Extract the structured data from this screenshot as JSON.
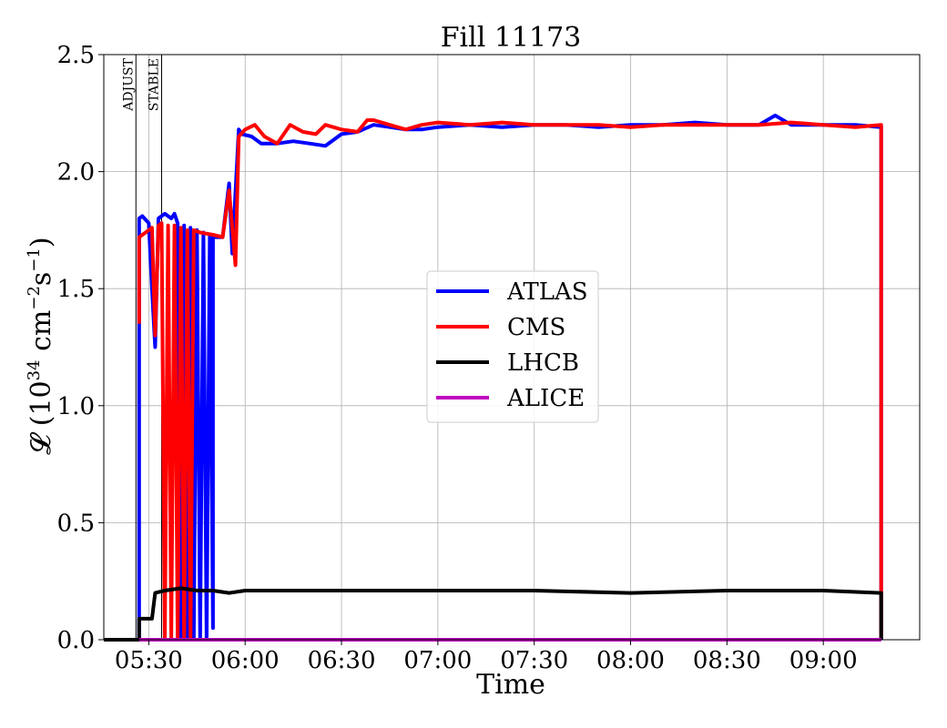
{
  "chart_data": {
    "type": "line",
    "title": "Fill 11173",
    "xlabel": "Time",
    "ylabel": "𝓛 (10³⁴ cm⁻²s⁻¹)",
    "ylabel_parts": {
      "prefix": "𝓛 (10",
      "sup1": "34",
      "mid": " cm",
      "sup2": "−2",
      "mid2": "s",
      "sup3": "−1",
      "suffix": ")"
    },
    "xlim": [
      "05:16",
      "09:30"
    ],
    "ylim": [
      0,
      2.5
    ],
    "xticks": [
      "05:30",
      "06:00",
      "06:30",
      "07:00",
      "07:30",
      "08:00",
      "08:30",
      "09:00"
    ],
    "yticks": [
      "0.0",
      "0.5",
      "1.0",
      "1.5",
      "2.0",
      "2.5"
    ],
    "grid": true,
    "legend_position": "center-right",
    "markers": [
      {
        "label": "ADJUST",
        "time": "05:26"
      },
      {
        "label": "STABLE",
        "time": "05:34"
      }
    ],
    "series": [
      {
        "name": "ATLAS",
        "color": "#0000ff",
        "points": [
          [
            "05:16",
            0
          ],
          [
            "05:25",
            0
          ],
          [
            "05:27",
            0
          ],
          [
            "05:27",
            1.8
          ],
          [
            "05:28",
            1.81
          ],
          [
            "05:30",
            1.78
          ],
          [
            "05:31",
            1.5
          ],
          [
            "05:32",
            1.25
          ],
          [
            "05:33",
            1.8
          ],
          [
            "05:35",
            1.82
          ],
          [
            "05:37",
            1.8
          ],
          [
            "05:38",
            1.82
          ],
          [
            "05:39",
            1.78
          ],
          [
            "05:40",
            0.0
          ],
          [
            "05:41",
            1.77
          ],
          [
            "05:42",
            0.0
          ],
          [
            "05:43",
            1.76
          ],
          [
            "05:44",
            0.0
          ],
          [
            "05:45",
            1.75
          ],
          [
            "05:46",
            0.0
          ],
          [
            "05:47",
            1.74
          ],
          [
            "05:48",
            0.0
          ],
          [
            "05:49",
            1.73
          ],
          [
            "05:50",
            0.05
          ],
          [
            "05:50",
            1.72
          ],
          [
            "05:53",
            1.72
          ],
          [
            "05:55",
            1.95
          ],
          [
            "05:56",
            1.65
          ],
          [
            "05:58",
            2.18
          ],
          [
            "05:59",
            2.16
          ],
          [
            "06:02",
            2.15
          ],
          [
            "06:05",
            2.12
          ],
          [
            "06:10",
            2.12
          ],
          [
            "06:15",
            2.13
          ],
          [
            "06:20",
            2.12
          ],
          [
            "06:25",
            2.11
          ],
          [
            "06:30",
            2.16
          ],
          [
            "06:35",
            2.17
          ],
          [
            "06:40",
            2.2
          ],
          [
            "06:45",
            2.19
          ],
          [
            "06:50",
            2.18
          ],
          [
            "06:55",
            2.18
          ],
          [
            "07:00",
            2.19
          ],
          [
            "07:10",
            2.2
          ],
          [
            "07:20",
            2.19
          ],
          [
            "07:30",
            2.2
          ],
          [
            "07:40",
            2.2
          ],
          [
            "07:50",
            2.19
          ],
          [
            "08:00",
            2.2
          ],
          [
            "08:10",
            2.2
          ],
          [
            "08:20",
            2.21
          ],
          [
            "08:30",
            2.2
          ],
          [
            "08:40",
            2.2
          ],
          [
            "08:45",
            2.24
          ],
          [
            "08:50",
            2.2
          ],
          [
            "09:00",
            2.2
          ],
          [
            "09:10",
            2.2
          ],
          [
            "09:18",
            2.19
          ],
          [
            "09:18",
            0
          ]
        ]
      },
      {
        "name": "CMS",
        "color": "#ff0000",
        "points": [
          [
            "05:27",
            1.35
          ],
          [
            "05:27",
            1.72
          ],
          [
            "05:29",
            1.74
          ],
          [
            "05:31",
            1.76
          ],
          [
            "05:32",
            1.3
          ],
          [
            "05:33",
            1.77
          ],
          [
            "05:34",
            1.78
          ],
          [
            "05:35",
            0.0
          ],
          [
            "05:36",
            1.77
          ],
          [
            "05:37",
            0.0
          ],
          [
            "05:38",
            1.77
          ],
          [
            "05:39",
            0.0
          ],
          [
            "05:40",
            1.76
          ],
          [
            "05:41",
            0.0
          ],
          [
            "05:42",
            1.75
          ],
          [
            "05:43",
            0.0
          ],
          [
            "05:44",
            1.75
          ],
          [
            "05:46",
            1.74
          ],
          [
            "05:50",
            1.73
          ],
          [
            "05:53",
            1.72
          ],
          [
            "05:55",
            1.92
          ],
          [
            "05:57",
            1.6
          ],
          [
            "05:58",
            2.15
          ],
          [
            "06:00",
            2.18
          ],
          [
            "06:03",
            2.2
          ],
          [
            "06:06",
            2.15
          ],
          [
            "06:10",
            2.12
          ],
          [
            "06:14",
            2.2
          ],
          [
            "06:18",
            2.17
          ],
          [
            "06:22",
            2.16
          ],
          [
            "06:25",
            2.2
          ],
          [
            "06:30",
            2.18
          ],
          [
            "06:35",
            2.17
          ],
          [
            "06:38",
            2.22
          ],
          [
            "06:40",
            2.22
          ],
          [
            "06:45",
            2.2
          ],
          [
            "06:50",
            2.18
          ],
          [
            "06:55",
            2.2
          ],
          [
            "07:00",
            2.21
          ],
          [
            "07:10",
            2.2
          ],
          [
            "07:20",
            2.21
          ],
          [
            "07:30",
            2.2
          ],
          [
            "07:40",
            2.2
          ],
          [
            "07:50",
            2.2
          ],
          [
            "08:00",
            2.19
          ],
          [
            "08:10",
            2.2
          ],
          [
            "08:20",
            2.2
          ],
          [
            "08:30",
            2.2
          ],
          [
            "08:40",
            2.2
          ],
          [
            "08:50",
            2.21
          ],
          [
            "09:00",
            2.2
          ],
          [
            "09:10",
            2.19
          ],
          [
            "09:18",
            2.2
          ],
          [
            "09:18",
            0
          ]
        ]
      },
      {
        "name": "LHCB",
        "color": "#000000",
        "points": [
          [
            "05:16",
            0
          ],
          [
            "05:27",
            0
          ],
          [
            "05:27",
            0.09
          ],
          [
            "05:31",
            0.09
          ],
          [
            "05:32",
            0.2
          ],
          [
            "05:35",
            0.21
          ],
          [
            "05:40",
            0.22
          ],
          [
            "05:45",
            0.21
          ],
          [
            "05:50",
            0.21
          ],
          [
            "05:55",
            0.2
          ],
          [
            "06:00",
            0.21
          ],
          [
            "06:30",
            0.21
          ],
          [
            "07:00",
            0.21
          ],
          [
            "07:30",
            0.21
          ],
          [
            "08:00",
            0.2
          ],
          [
            "08:30",
            0.21
          ],
          [
            "09:00",
            0.21
          ],
          [
            "09:18",
            0.2
          ],
          [
            "09:18",
            0
          ]
        ]
      },
      {
        "name": "ALICE",
        "color": "#c000c0",
        "points": [
          [
            "05:27",
            0
          ],
          [
            "09:18",
            0
          ]
        ]
      }
    ]
  }
}
